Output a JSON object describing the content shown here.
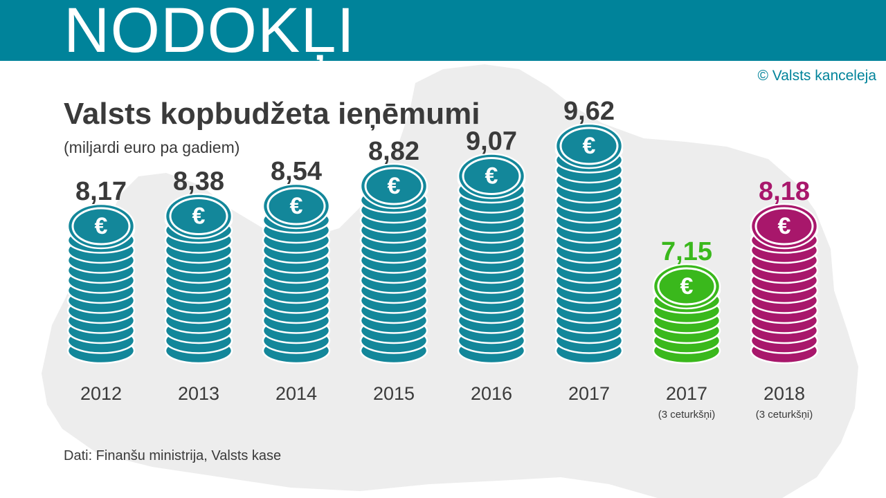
{
  "header": {
    "banner_title": "NODOKĻI",
    "copyright": "© Valsts kanceleja"
  },
  "footer": {
    "source": "Dati: Finanšu ministrija, Valsts kase"
  },
  "colors": {
    "banner": "#00839a",
    "coin_teal": "#13879a",
    "coin_green": "#3ab81c",
    "coin_magenta": "#a8176b",
    "label_dark": "#3a3a3a",
    "map_bg": "#ededed"
  },
  "chart_data": {
    "type": "bar",
    "title": "Valsts kopbudžeta ieņēmumi",
    "subtitle": "(miljardi euro pa gadiem)",
    "categories": [
      "2012",
      "2013",
      "2014",
      "2015",
      "2016",
      "2017",
      "2017",
      "2018"
    ],
    "category_notes": [
      "",
      "",
      "",
      "",
      "",
      "",
      "(3 ceturkšņi)",
      "(3 ceturkšņi)"
    ],
    "values": [
      8.17,
      8.38,
      8.54,
      8.82,
      9.07,
      9.62,
      7.15,
      8.18
    ],
    "value_labels": [
      "8,17",
      "8,38",
      "8,54",
      "8,82",
      "9,07",
      "9,62",
      "7,15",
      "8,18"
    ],
    "bar_style": [
      "teal",
      "teal",
      "teal",
      "teal",
      "teal",
      "teal",
      "green",
      "magenta"
    ],
    "xlabel": "",
    "ylabel": "",
    "grid": false
  }
}
